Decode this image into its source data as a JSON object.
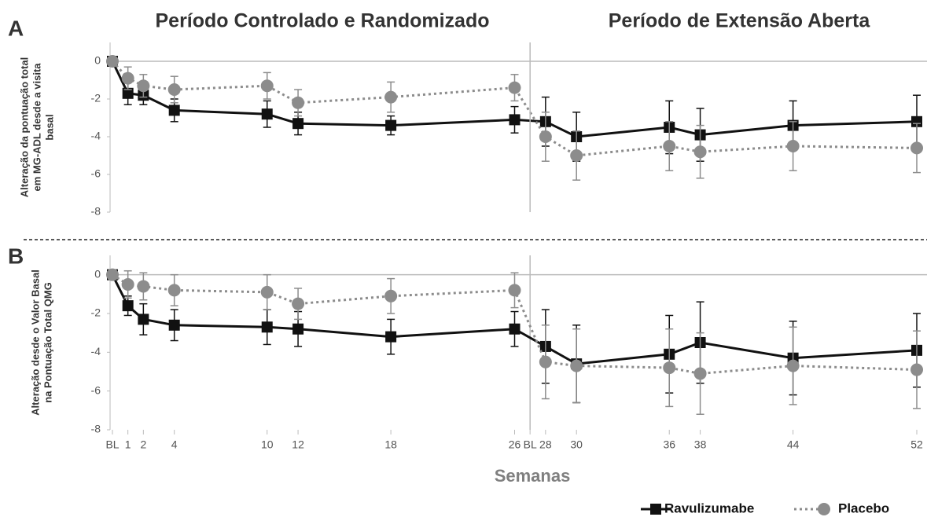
{
  "chart_data": [
    {
      "type": "line",
      "label": "A",
      "annotations": [
        "Período Controlado e Randomizado",
        "Período de Extensão Aberta"
      ],
      "ylabel": [
        "Alteração da pontuação total",
        "em MG-ADL desde a visita",
        "basal"
      ],
      "x": [
        0,
        1,
        2,
        4,
        10,
        12,
        18,
        26,
        28,
        30,
        36,
        38,
        44,
        52
      ],
      "xlim": [
        0,
        52
      ],
      "ylim": [
        -8,
        1
      ],
      "yticks": [
        0,
        -2,
        -4,
        -6,
        -8
      ],
      "series": [
        {
          "color": "#111111",
          "marker": "square",
          "dash": false,
          "values": [
            0,
            -1.7,
            -1.8,
            -2.6,
            -2.8,
            -3.3,
            -3.4,
            -3.1,
            -3.2,
            -4.0,
            -3.5,
            -3.9,
            -3.4,
            -3.2
          ],
          "errors": [
            0,
            0.6,
            0.5,
            0.6,
            0.7,
            0.6,
            0.5,
            0.7,
            1.3,
            1.3,
            1.4,
            1.4,
            1.3,
            1.4
          ]
        },
        {
          "color": "#8c8c8c",
          "marker": "circle",
          "dash": true,
          "values": [
            0,
            -0.9,
            -1.3,
            -1.5,
            -1.3,
            -2.2,
            -1.9,
            -1.4,
            -4.0,
            -5.0,
            -4.5,
            -4.8,
            -4.5,
            -4.6
          ],
          "errors": [
            0,
            0.6,
            0.6,
            0.7,
            0.7,
            0.7,
            0.8,
            0.7,
            1.3,
            1.3,
            1.3,
            1.4,
            1.3,
            1.3
          ]
        }
      ]
    },
    {
      "type": "line",
      "label": "B",
      "ylabel": [
        "Alteração desde o Valor Basal",
        "na Pontuação Total QMG"
      ],
      "xlabel": "Semanas",
      "x": [
        0,
        1,
        2,
        4,
        10,
        12,
        18,
        26,
        28,
        30,
        36,
        38,
        44,
        52
      ],
      "xlim": [
        0,
        52
      ],
      "ylim": [
        -8,
        1
      ],
      "yticks": [
        0,
        -2,
        -4,
        -6,
        -8
      ],
      "xticks": [
        {
          "value": 0,
          "label": "BL"
        },
        1,
        2,
        4,
        10,
        12,
        18,
        26,
        {
          "value": 27,
          "label": "BL"
        },
        28,
        30,
        36,
        38,
        44,
        52
      ],
      "series": [
        {
          "name": "Ravulizumabe",
          "color": "#111111",
          "marker": "square",
          "dash": false,
          "values": [
            0,
            -1.6,
            -2.3,
            -2.6,
            -2.7,
            -2.8,
            -3.2,
            -2.8,
            -3.7,
            -4.6,
            -4.1,
            -3.5,
            -4.3,
            -3.9
          ],
          "errors": [
            0,
            0.5,
            0.8,
            0.8,
            0.9,
            0.9,
            0.9,
            0.9,
            1.9,
            2.0,
            2.0,
            2.1,
            1.9,
            1.9
          ]
        },
        {
          "name": "Placebo",
          "color": "#8c8c8c",
          "marker": "circle",
          "dash": true,
          "values": [
            0,
            -0.5,
            -0.6,
            -0.8,
            -0.9,
            -1.5,
            -1.1,
            -0.8,
            -4.5,
            -4.7,
            -4.8,
            -5.1,
            -4.7,
            -4.9
          ],
          "errors": [
            0,
            0.7,
            0.7,
            0.8,
            0.9,
            0.8,
            0.9,
            0.9,
            1.9,
            1.9,
            2.0,
            2.1,
            2.0,
            2.0
          ]
        }
      ]
    }
  ]
}
